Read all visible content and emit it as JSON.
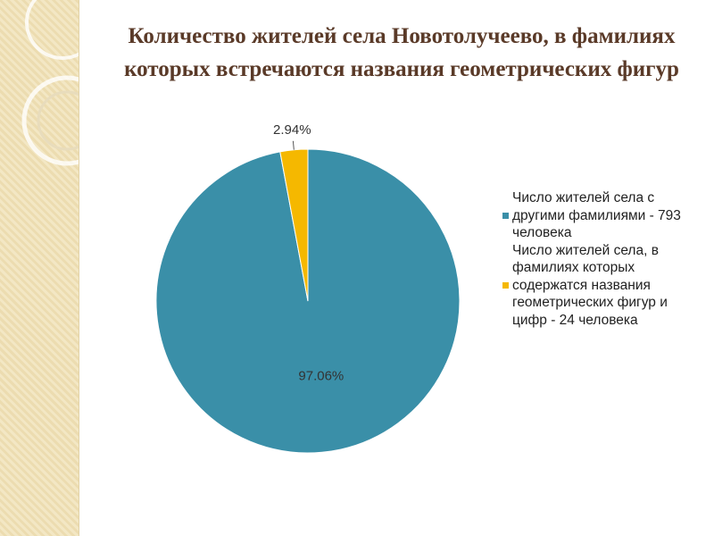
{
  "chart_data": {
    "type": "pie",
    "title": "Количество жителей села Новотолучеево, в фамилиях которых встречаются названия геометрических фигур",
    "categories": [
      "Число жителей села с другими фамилиями - 793 человека",
      "Число жителей села, в фамилиях которых содержатся названия геометрических фигур и цифр - 24 человека"
    ],
    "values": [
      97.06,
      2.94
    ],
    "value_labels": [
      "97.06%",
      "2.94%"
    ],
    "colors": [
      "#3a8fa8",
      "#f5b800"
    ],
    "legend": "right"
  }
}
